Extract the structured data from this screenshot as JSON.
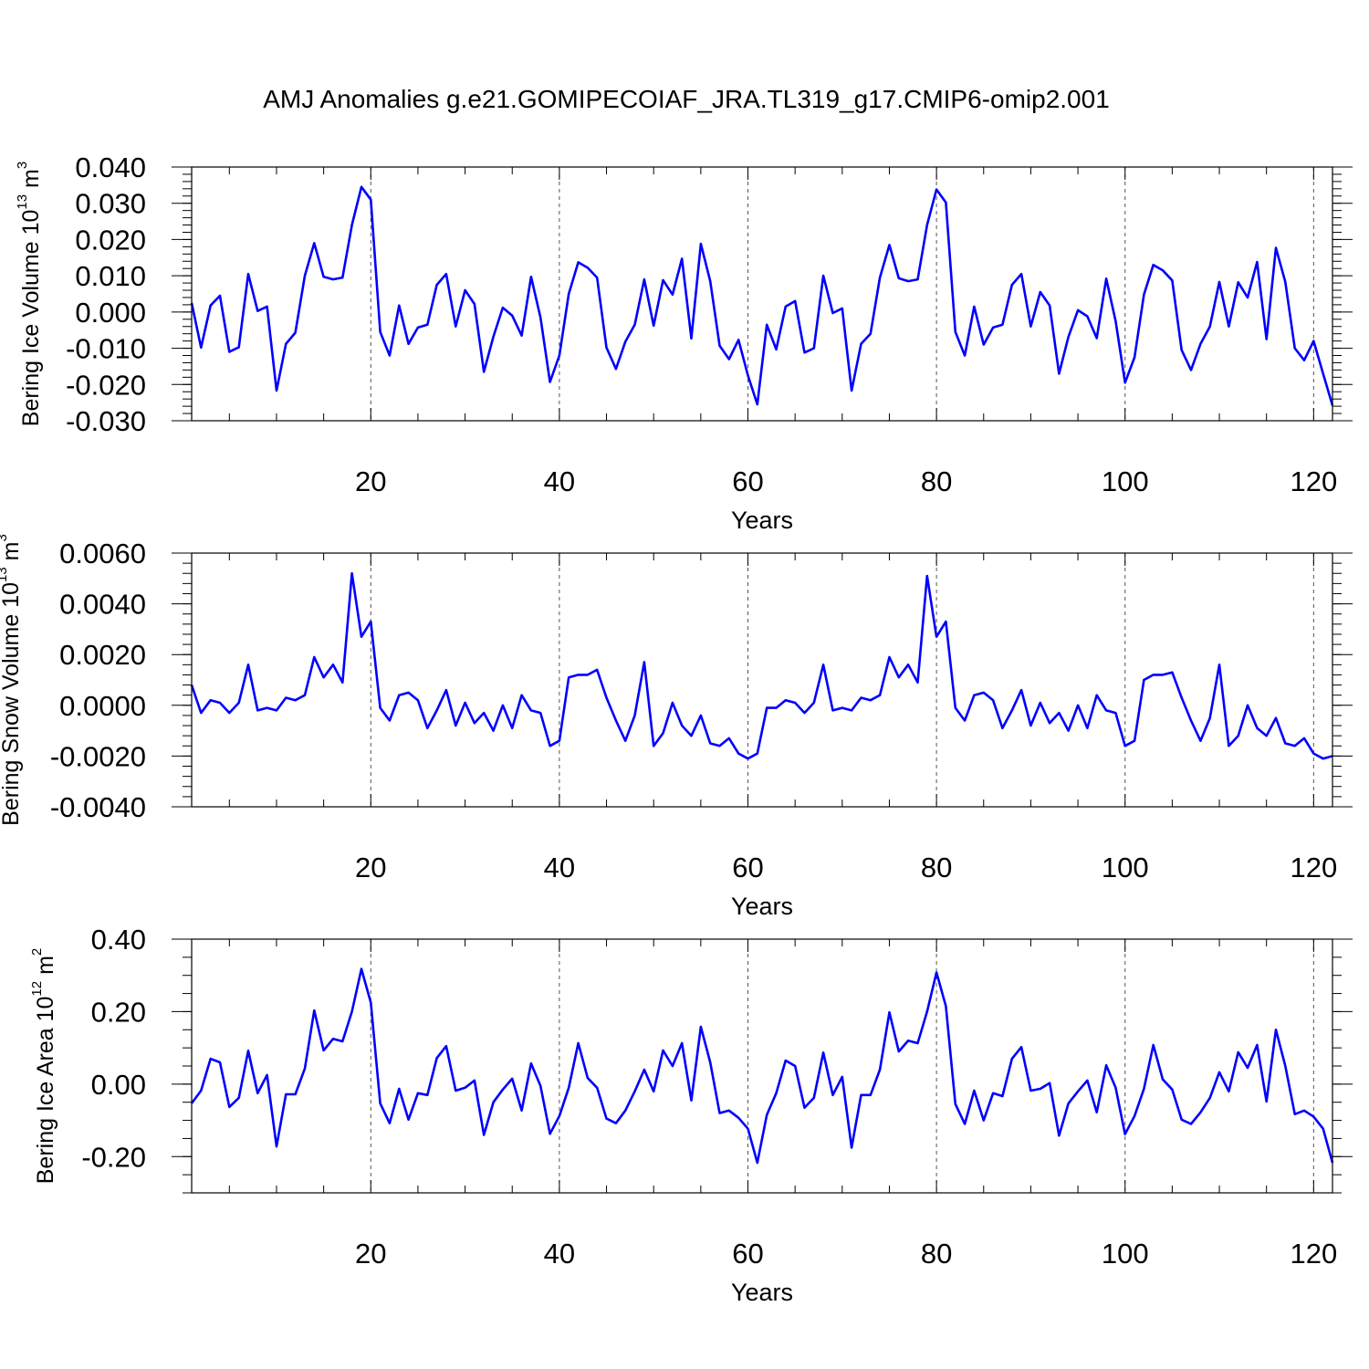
{
  "figure": {
    "title": "AMJ Anomalies g.e21.GOMIPECOIAF_JRA.TL319_g17.CMIP6-omip2.001",
    "line_color": "#0000ff"
  },
  "chart_data": [
    {
      "type": "line",
      "name": "ice-volume",
      "ylabel_main": "Bering Ice Volume 10",
      "ylabel_exp": "13",
      "ylabel_unit": " m",
      "ylabel_unit_exp": "3",
      "xlabel": "Years",
      "xlim": [
        1,
        122
      ],
      "ylim": [
        -0.03,
        0.04
      ],
      "y_ticks": [
        -0.03,
        -0.02,
        -0.01,
        0.0,
        0.01,
        0.02,
        0.03,
        0.04
      ],
      "y_tick_labels": [
        "-0.030",
        "-0.020",
        "-0.010",
        "0.000",
        "0.010",
        "0.020",
        "0.030",
        "0.040"
      ],
      "y_minor_step": 0.002,
      "x_ticks": [
        20,
        40,
        60,
        80,
        100,
        120
      ],
      "x_tick_labels": [
        "20",
        "40",
        "60",
        "80",
        "100",
        "120"
      ],
      "grid_x": true,
      "values": [
        0.0025,
        -0.0098,
        0.0018,
        0.0045,
        -0.011,
        -0.0097,
        0.0105,
        0.0003,
        0.0015,
        -0.0217,
        -0.0088,
        -0.0057,
        0.01,
        0.019,
        0.0097,
        0.009,
        0.0095,
        0.024,
        0.0345,
        0.031,
        -0.0055,
        -0.012,
        0.0018,
        -0.0088,
        -0.0043,
        -0.0035,
        0.0075,
        0.0105,
        -0.004,
        0.006,
        0.0022,
        -0.0165,
        -0.0068,
        0.0012,
        -0.001,
        -0.0065,
        0.0097,
        -0.0015,
        -0.0193,
        -0.012,
        0.005,
        0.0137,
        0.0122,
        0.0095,
        -0.0098,
        -0.0157,
        -0.0082,
        -0.0035,
        0.009,
        -0.0038,
        0.0088,
        0.0048,
        0.0147,
        -0.0073,
        0.0188,
        0.0085,
        -0.0093,
        -0.013,
        -0.0077,
        -0.0175,
        -0.0255,
        -0.0035,
        -0.0103,
        0.0015,
        0.003,
        -0.0112,
        -0.01,
        0.01,
        -0.0003,
        0.001,
        -0.0217,
        -0.0088,
        -0.006,
        0.0095,
        0.0185,
        0.0093,
        0.0085,
        0.009,
        0.024,
        0.0338,
        0.0302,
        -0.0055,
        -0.012,
        0.0015,
        -0.009,
        -0.0043,
        -0.0035,
        0.0075,
        0.0105,
        -0.004,
        0.0055,
        0.0018,
        -0.017,
        -0.0068,
        0.0005,
        -0.0012,
        -0.0072,
        0.0092,
        -0.0025,
        -0.0195,
        -0.0125,
        0.0048,
        0.013,
        0.0115,
        0.0087,
        -0.0105,
        -0.016,
        -0.0088,
        -0.004,
        0.0083,
        -0.004,
        0.0082,
        0.004,
        0.0138,
        -0.0075,
        0.0177,
        0.0083,
        -0.01,
        -0.0133,
        -0.008,
        -0.017,
        -0.0258
      ]
    },
    {
      "type": "line",
      "name": "snow-volume",
      "ylabel_main": "Bering Snow Volume 10",
      "ylabel_exp": "13",
      "ylabel_unit": " m",
      "ylabel_unit_exp": "3",
      "xlabel": "Years",
      "xlim": [
        1,
        122
      ],
      "ylim": [
        -0.004,
        0.006
      ],
      "y_ticks": [
        -0.004,
        -0.002,
        0.0,
        0.002,
        0.004,
        0.006
      ],
      "y_tick_labels": [
        "-0.0040",
        "-0.0020",
        "0.0000",
        "0.0020",
        "0.0040",
        "0.0060"
      ],
      "y_minor_step": 0.0004,
      "x_ticks": [
        20,
        40,
        60,
        80,
        100,
        120
      ],
      "x_tick_labels": [
        "20",
        "40",
        "60",
        "80",
        "100",
        "120"
      ],
      "grid_x": true,
      "values": [
        0.0008,
        -0.0003,
        0.0002,
        0.0001,
        -0.0003,
        0.0001,
        0.0016,
        -0.0002,
        -0.0001,
        -0.0002,
        0.0003,
        0.0002,
        0.0004,
        0.0019,
        0.0011,
        0.0016,
        0.0009,
        0.0052,
        0.0027,
        0.0033,
        -0.0001,
        -0.0006,
        0.0004,
        0.0005,
        0.0002,
        -0.0009,
        -0.0002,
        0.0006,
        -0.0008,
        0.0001,
        -0.0007,
        -0.0003,
        -0.001,
        0.0,
        -0.0009,
        0.0004,
        -0.0002,
        -0.0003,
        -0.0016,
        -0.0014,
        0.0011,
        0.0012,
        0.0012,
        0.0014,
        0.0003,
        -0.0006,
        -0.0014,
        -0.0004,
        0.0017,
        -0.0016,
        -0.0011,
        0.0001,
        -0.0008,
        -0.0012,
        -0.0004,
        -0.0015,
        -0.0016,
        -0.0013,
        -0.0019,
        -0.0021,
        -0.0019,
        -0.0001,
        -0.0001,
        0.0002,
        0.0001,
        -0.0003,
        0.0001,
        0.0016,
        -0.0002,
        -0.0001,
        -0.0002,
        0.0003,
        0.0002,
        0.0004,
        0.0019,
        0.0011,
        0.0016,
        0.0009,
        0.0051,
        0.0027,
        0.0033,
        -0.0001,
        -0.0006,
        0.0004,
        0.0005,
        0.0002,
        -0.0009,
        -0.0002,
        0.0006,
        -0.0008,
        0.0001,
        -0.0007,
        -0.0003,
        -0.001,
        0.0,
        -0.0009,
        0.0004,
        -0.0002,
        -0.0003,
        -0.0016,
        -0.0014,
        0.001,
        0.0012,
        0.0012,
        0.0013,
        0.0003,
        -0.0006,
        -0.0014,
        -0.0005,
        0.0016,
        -0.0016,
        -0.0012,
        0.0,
        -0.0009,
        -0.0012,
        -0.0005,
        -0.0015,
        -0.0016,
        -0.0013,
        -0.0019,
        -0.0021,
        -0.002
      ]
    },
    {
      "type": "line",
      "name": "ice-area",
      "ylabel_main": "Bering Ice Area 10",
      "ylabel_exp": "12",
      "ylabel_unit": " m",
      "ylabel_unit_exp": "2",
      "xlabel": "Years",
      "xlim": [
        1,
        122
      ],
      "ylim": [
        -0.3,
        0.4
      ],
      "y_ticks": [
        -0.2,
        0.0,
        0.2,
        0.4
      ],
      "y_tick_labels": [
        "-0.20",
        "0.00",
        "0.20",
        "0.40"
      ],
      "y_minor_step": 0.05,
      "x_ticks": [
        20,
        40,
        60,
        80,
        100,
        120
      ],
      "x_tick_labels": [
        "20",
        "40",
        "60",
        "80",
        "100",
        "120"
      ],
      "grid_x": true,
      "values": [
        -0.053,
        -0.018,
        0.07,
        0.06,
        -0.063,
        -0.038,
        0.092,
        -0.025,
        0.025,
        -0.172,
        -0.028,
        -0.028,
        0.043,
        0.203,
        0.093,
        0.125,
        0.118,
        0.2,
        0.318,
        0.225,
        -0.053,
        -0.108,
        -0.013,
        -0.098,
        -0.025,
        -0.03,
        0.072,
        0.105,
        -0.018,
        -0.01,
        0.01,
        -0.14,
        -0.05,
        -0.015,
        0.015,
        -0.073,
        0.057,
        -0.005,
        -0.137,
        -0.088,
        -0.01,
        0.113,
        0.017,
        -0.01,
        -0.095,
        -0.108,
        -0.073,
        -0.02,
        0.04,
        -0.02,
        0.093,
        0.05,
        0.113,
        -0.045,
        0.158,
        0.06,
        -0.08,
        -0.073,
        -0.093,
        -0.123,
        -0.217,
        -0.085,
        -0.025,
        0.065,
        0.05,
        -0.065,
        -0.038,
        0.087,
        -0.03,
        0.02,
        -0.175,
        -0.03,
        -0.03,
        0.04,
        0.198,
        0.09,
        0.12,
        0.113,
        0.2,
        0.308,
        0.215,
        -0.055,
        -0.11,
        -0.018,
        -0.1,
        -0.025,
        -0.033,
        0.07,
        0.102,
        -0.018,
        -0.013,
        0.003,
        -0.142,
        -0.053,
        -0.02,
        0.01,
        -0.078,
        0.052,
        -0.01,
        -0.138,
        -0.088,
        -0.013,
        0.108,
        0.013,
        -0.015,
        -0.098,
        -0.11,
        -0.078,
        -0.038,
        0.033,
        -0.02,
        0.088,
        0.045,
        0.108,
        -0.048,
        0.15,
        0.05,
        -0.083,
        -0.073,
        -0.09,
        -0.123,
        -0.217
      ]
    }
  ]
}
